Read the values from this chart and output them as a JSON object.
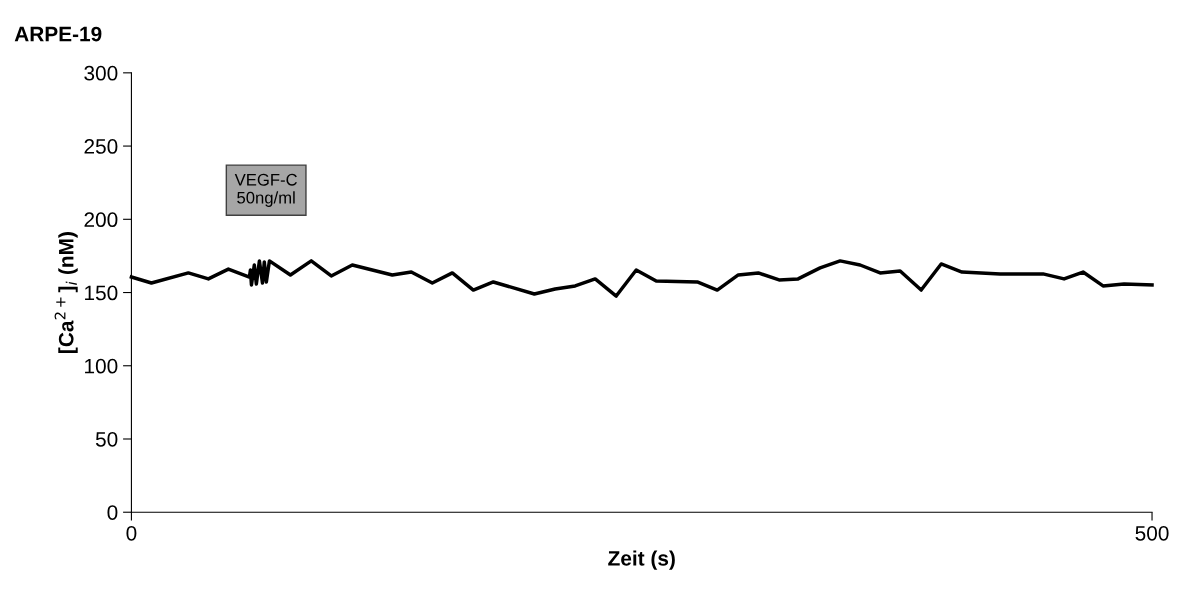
{
  "chart_data": {
    "type": "line",
    "title": "ARPE-19",
    "xlabel": "Zeit (s)",
    "ylabel": "[Ca$^{2+}$]$_{i}$ (nM)",
    "series": [
      {
        "color": "#000000",
        "x": [
          0,
          9.8,
          27.9,
          37.7,
          47.5,
          57.8,
          58.3,
          58.8,
          60.2,
          61.2,
          62.7,
          64.2,
          65.1,
          66.1,
          67.6,
          77.9,
          88.1,
          97.9,
          108.2,
          127.8,
          137.1,
          147.4,
          157.2,
          167.5,
          177.3,
          197.4,
          207.6,
          217.4,
          227.2,
          237.5,
          247.3,
          257.1,
          277.2,
          287,
          297.3,
          307.1,
          317.3,
          326.6,
          337.4,
          347.2,
          357,
          366.8,
          376.6,
          386.9,
          396.7,
          406.9,
          425.6,
          446.6,
          456.9,
          466.2,
          476,
          486.3,
          500
        ],
        "values": [
          160.6,
          156.5,
          163.4,
          159.3,
          166,
          160.6,
          165.4,
          155.2,
          168.8,
          155.8,
          171.6,
          156.5,
          170.9,
          157.2,
          171.6,
          162,
          171.6,
          161.3,
          168.8,
          162,
          164,
          156.5,
          163.4,
          151.7,
          157.2,
          149,
          152.4,
          154.5,
          159.3,
          147.6,
          165.4,
          157.9,
          157.2,
          151.7,
          162,
          163.4,
          158.6,
          159.3,
          166.8,
          171.6,
          168.8,
          163.4,
          164.7,
          151.7,
          169.5,
          164,
          162.7,
          162.7,
          159.3,
          164,
          154.5,
          155.8,
          155.2
        ]
      }
    ],
    "annotations": [
      "VEGF-C\n50ng/ml"
    ],
    "xlim": [
      0,
      500
    ],
    "xticks": [
      0,
      500
    ],
    "ylim": [
      0,
      300
    ],
    "yticks": [
      0,
      50,
      100,
      150,
      200,
      250,
      300
    ],
    "grid": false,
    "marker": "none",
    "line_style": "solid"
  }
}
